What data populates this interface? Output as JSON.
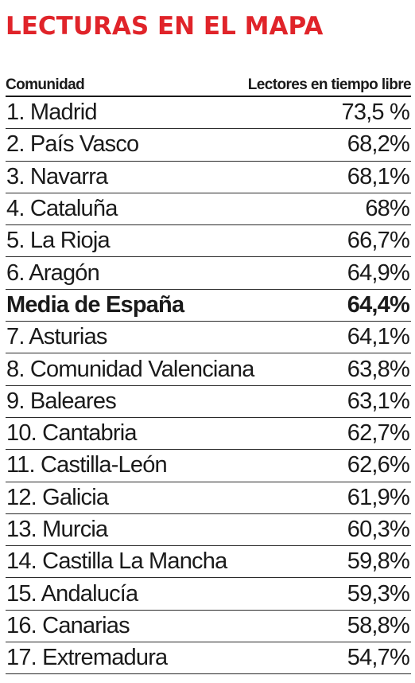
{
  "title": "LECTURAS EN EL MAPA",
  "colors": {
    "title": "#e0242a",
    "text": "#1a1a1a"
  },
  "chart_data": {
    "type": "table",
    "title": "LECTURAS EN EL MAPA",
    "columns": [
      "Comunidad",
      "Lectores en tiempo libre"
    ],
    "rows": [
      {
        "name": "1. Madrid",
        "value": "73,5 %",
        "highlight": false
      },
      {
        "name": "2. País Vasco",
        "value": "68,2%",
        "highlight": false
      },
      {
        "name": "3. Navarra",
        "value": "68,1%",
        "highlight": false
      },
      {
        "name": "4. Cataluña",
        "value": "68%",
        "highlight": false
      },
      {
        "name": "5. La Rioja",
        "value": "66,7%",
        "highlight": false
      },
      {
        "name": "6. Aragón",
        "value": "64,9%",
        "highlight": false
      },
      {
        "name": "Media de España",
        "value": "64,4%",
        "highlight": true
      },
      {
        "name": "7. Asturias",
        "value": "64,1%",
        "highlight": false
      },
      {
        "name": "8. Comunidad Valenciana",
        "value": "63,8%",
        "highlight": false
      },
      {
        "name": "9. Baleares",
        "value": "63,1%",
        "highlight": false
      },
      {
        "name": "10. Cantabria",
        "value": "62,7%",
        "highlight": false
      },
      {
        "name": "11. Castilla-León",
        "value": "62,6%",
        "highlight": false
      },
      {
        "name": "12. Galicia",
        "value": "61,9%",
        "highlight": false
      },
      {
        "name": "13. Murcia",
        "value": "60,3%",
        "highlight": false
      },
      {
        "name": "14. Castilla La Mancha",
        "value": "59,8%",
        "highlight": false
      },
      {
        "name": "15. Andalucía",
        "value": "59,3%",
        "highlight": false
      },
      {
        "name": "16. Canarias",
        "value": "58,8%",
        "highlight": false
      },
      {
        "name": "17. Extremadura",
        "value": "54,7%",
        "highlight": false
      }
    ]
  }
}
